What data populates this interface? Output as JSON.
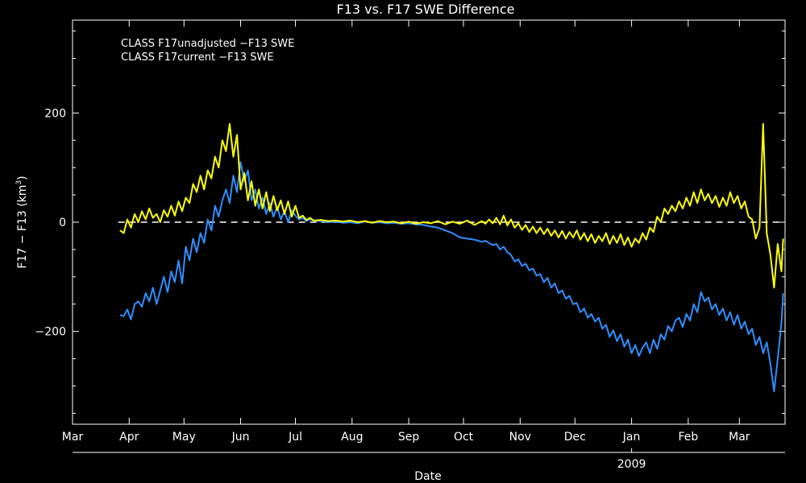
{
  "chart_data": {
    "type": "line",
    "title": "F13 vs. F17 SWE Difference",
    "xlabel": "Date",
    "ylabel_main": "F17 − F13 (km",
    "ylabel_sup": "3",
    "ylabel_close": ")",
    "year_label": "2009",
    "months": [
      "Mar",
      "Apr",
      "May",
      "Jun",
      "Jul",
      "Aug",
      "Sep",
      "Oct",
      "Nov",
      "Dec",
      "Jan",
      "Feb",
      "Mar"
    ],
    "month_days": [
      0,
      31,
      61,
      92,
      122,
      153,
      184,
      214,
      245,
      275,
      306,
      337,
      365
    ],
    "xlim": [
      0,
      390
    ],
    "ylim": [
      -370,
      370
    ],
    "yticks": [
      -200,
      0,
      200
    ],
    "ytick_labels": [
      "−200",
      "0",
      "200"
    ],
    "zero_line": 0,
    "grid": false,
    "legend_position": "top-left",
    "series": [
      {
        "name": "CLASS F17unadjusted −F13 SWE",
        "color": "#2f8fff",
        "points": [
          [
            26,
            -170
          ],
          [
            28,
            -172
          ],
          [
            30,
            -160
          ],
          [
            32,
            -178
          ],
          [
            34,
            -150
          ],
          [
            36,
            -145
          ],
          [
            38,
            -155
          ],
          [
            40,
            -130
          ],
          [
            42,
            -145
          ],
          [
            44,
            -120
          ],
          [
            46,
            -150
          ],
          [
            48,
            -125
          ],
          [
            50,
            -100
          ],
          [
            52,
            -128
          ],
          [
            54,
            -90
          ],
          [
            56,
            -110
          ],
          [
            58,
            -70
          ],
          [
            60,
            -112
          ],
          [
            62,
            -45
          ],
          [
            64,
            -70
          ],
          [
            66,
            -30
          ],
          [
            68,
            -55
          ],
          [
            70,
            -20
          ],
          [
            72,
            -38
          ],
          [
            74,
            5
          ],
          [
            76,
            -15
          ],
          [
            78,
            30
          ],
          [
            80,
            10
          ],
          [
            82,
            40
          ],
          [
            84,
            60
          ],
          [
            86,
            35
          ],
          [
            88,
            85
          ],
          [
            90,
            55
          ],
          [
            92,
            110
          ],
          [
            94,
            75
          ],
          [
            96,
            95
          ],
          [
            98,
            40
          ],
          [
            100,
            60
          ],
          [
            102,
            25
          ],
          [
            104,
            45
          ],
          [
            106,
            15
          ],
          [
            108,
            35
          ],
          [
            110,
            10
          ],
          [
            112,
            28
          ],
          [
            114,
            5
          ],
          [
            116,
            20
          ],
          [
            118,
            0
          ],
          [
            120,
            22
          ],
          [
            122,
            12
          ],
          [
            124,
            5
          ],
          [
            126,
            8
          ],
          [
            128,
            2
          ],
          [
            130,
            5
          ],
          [
            132,
            3
          ],
          [
            136,
            2
          ],
          [
            140,
            0
          ],
          [
            144,
            1
          ],
          [
            148,
            -1
          ],
          [
            152,
            0
          ],
          [
            156,
            -2
          ],
          [
            160,
            1
          ],
          [
            164,
            -1
          ],
          [
            168,
            0
          ],
          [
            172,
            -2
          ],
          [
            176,
            -1
          ],
          [
            180,
            -3
          ],
          [
            184,
            -2
          ],
          [
            188,
            -4
          ],
          [
            192,
            -5
          ],
          [
            196,
            -8
          ],
          [
            200,
            -10
          ],
          [
            204,
            -15
          ],
          [
            208,
            -20
          ],
          [
            212,
            -28
          ],
          [
            216,
            -30
          ],
          [
            220,
            -32
          ],
          [
            224,
            -36
          ],
          [
            226,
            -34
          ],
          [
            228,
            -38
          ],
          [
            230,
            -42
          ],
          [
            232,
            -40
          ],
          [
            234,
            -50
          ],
          [
            236,
            -45
          ],
          [
            238,
            -55
          ],
          [
            240,
            -60
          ],
          [
            242,
            -72
          ],
          [
            244,
            -68
          ],
          [
            246,
            -80
          ],
          [
            248,
            -76
          ],
          [
            250,
            -88
          ],
          [
            252,
            -85
          ],
          [
            254,
            -98
          ],
          [
            256,
            -95
          ],
          [
            258,
            -110
          ],
          [
            260,
            -102
          ],
          [
            262,
            -120
          ],
          [
            264,
            -112
          ],
          [
            266,
            -130
          ],
          [
            268,
            -125
          ],
          [
            270,
            -140
          ],
          [
            272,
            -135
          ],
          [
            274,
            -150
          ],
          [
            276,
            -148
          ],
          [
            278,
            -165
          ],
          [
            280,
            -158
          ],
          [
            282,
            -175
          ],
          [
            284,
            -168
          ],
          [
            286,
            -182
          ],
          [
            288,
            -175
          ],
          [
            290,
            -195
          ],
          [
            292,
            -188
          ],
          [
            294,
            -210
          ],
          [
            296,
            -198
          ],
          [
            298,
            -218
          ],
          [
            300,
            -205
          ],
          [
            302,
            -228
          ],
          [
            304,
            -215
          ],
          [
            306,
            -240
          ],
          [
            308,
            -225
          ],
          [
            310,
            -245
          ],
          [
            312,
            -230
          ],
          [
            314,
            -220
          ],
          [
            316,
            -240
          ],
          [
            318,
            -215
          ],
          [
            320,
            -232
          ],
          [
            322,
            -205
          ],
          [
            324,
            -215
          ],
          [
            326,
            -190
          ],
          [
            328,
            -200
          ],
          [
            330,
            -180
          ],
          [
            332,
            -175
          ],
          [
            334,
            -192
          ],
          [
            336,
            -168
          ],
          [
            338,
            -180
          ],
          [
            340,
            -150
          ],
          [
            342,
            -165
          ],
          [
            344,
            -128
          ],
          [
            346,
            -145
          ],
          [
            348,
            -138
          ],
          [
            350,
            -160
          ],
          [
            352,
            -150
          ],
          [
            354,
            -170
          ],
          [
            356,
            -158
          ],
          [
            358,
            -180
          ],
          [
            360,
            -165
          ],
          [
            362,
            -188
          ],
          [
            364,
            -170
          ],
          [
            366,
            -195
          ],
          [
            368,
            -182
          ],
          [
            370,
            -205
          ],
          [
            372,
            -195
          ],
          [
            374,
            -225
          ],
          [
            376,
            -210
          ],
          [
            378,
            -240
          ],
          [
            380,
            -220
          ],
          [
            382,
            -260
          ],
          [
            384,
            -310
          ],
          [
            386,
            -250
          ],
          [
            388,
            -185
          ],
          [
            389,
            -130
          ]
        ]
      },
      {
        "name": "CLASS F17current −F13 SWE",
        "color": "#ffff00",
        "points": [
          [
            26,
            -15
          ],
          [
            28,
            -20
          ],
          [
            30,
            5
          ],
          [
            32,
            -10
          ],
          [
            34,
            15
          ],
          [
            36,
            0
          ],
          [
            38,
            20
          ],
          [
            40,
            5
          ],
          [
            42,
            25
          ],
          [
            44,
            8
          ],
          [
            46,
            15
          ],
          [
            48,
            0
          ],
          [
            50,
            22
          ],
          [
            52,
            10
          ],
          [
            54,
            30
          ],
          [
            56,
            12
          ],
          [
            58,
            38
          ],
          [
            60,
            20
          ],
          [
            62,
            45
          ],
          [
            64,
            35
          ],
          [
            66,
            70
          ],
          [
            68,
            55
          ],
          [
            70,
            85
          ],
          [
            72,
            60
          ],
          [
            74,
            95
          ],
          [
            76,
            80
          ],
          [
            78,
            120
          ],
          [
            80,
            100
          ],
          [
            82,
            150
          ],
          [
            84,
            130
          ],
          [
            86,
            180
          ],
          [
            88,
            120
          ],
          [
            90,
            160
          ],
          [
            92,
            60
          ],
          [
            94,
            90
          ],
          [
            96,
            40
          ],
          [
            98,
            75
          ],
          [
            100,
            30
          ],
          [
            102,
            60
          ],
          [
            104,
            25
          ],
          [
            106,
            55
          ],
          [
            108,
            20
          ],
          [
            110,
            48
          ],
          [
            112,
            22
          ],
          [
            114,
            40
          ],
          [
            116,
            15
          ],
          [
            118,
            38
          ],
          [
            120,
            10
          ],
          [
            122,
            30
          ],
          [
            124,
            8
          ],
          [
            126,
            12
          ],
          [
            128,
            4
          ],
          [
            130,
            8
          ],
          [
            132,
            3
          ],
          [
            136,
            4
          ],
          [
            140,
            2
          ],
          [
            144,
            3
          ],
          [
            148,
            1
          ],
          [
            152,
            3
          ],
          [
            156,
            0
          ],
          [
            160,
            2
          ],
          [
            164,
            -1
          ],
          [
            168,
            2
          ],
          [
            172,
            0
          ],
          [
            176,
            1
          ],
          [
            180,
            -2
          ],
          [
            184,
            1
          ],
          [
            188,
            -3
          ],
          [
            192,
            0
          ],
          [
            196,
            -2
          ],
          [
            200,
            2
          ],
          [
            204,
            -4
          ],
          [
            208,
            1
          ],
          [
            212,
            -3
          ],
          [
            216,
            3
          ],
          [
            220,
            -5
          ],
          [
            224,
            2
          ],
          [
            226,
            -3
          ],
          [
            228,
            5
          ],
          [
            230,
            -2
          ],
          [
            232,
            8
          ],
          [
            234,
            -4
          ],
          [
            236,
            12
          ],
          [
            238,
            -6
          ],
          [
            240,
            5
          ],
          [
            242,
            -10
          ],
          [
            244,
            -2
          ],
          [
            246,
            -14
          ],
          [
            248,
            -5
          ],
          [
            250,
            -18
          ],
          [
            252,
            -8
          ],
          [
            254,
            -20
          ],
          [
            256,
            -10
          ],
          [
            258,
            -22
          ],
          [
            260,
            -12
          ],
          [
            262,
            -25
          ],
          [
            264,
            -15
          ],
          [
            266,
            -28
          ],
          [
            268,
            -16
          ],
          [
            270,
            -30
          ],
          [
            272,
            -18
          ],
          [
            274,
            -28
          ],
          [
            276,
            -15
          ],
          [
            278,
            -32
          ],
          [
            280,
            -20
          ],
          [
            282,
            -35
          ],
          [
            284,
            -22
          ],
          [
            286,
            -38
          ],
          [
            288,
            -25
          ],
          [
            290,
            -35
          ],
          [
            292,
            -20
          ],
          [
            294,
            -40
          ],
          [
            296,
            -25
          ],
          [
            298,
            -38
          ],
          [
            300,
            -22
          ],
          [
            302,
            -42
          ],
          [
            304,
            -28
          ],
          [
            306,
            -45
          ],
          [
            308,
            -30
          ],
          [
            310,
            -38
          ],
          [
            312,
            -20
          ],
          [
            314,
            -32
          ],
          [
            316,
            -10
          ],
          [
            318,
            -18
          ],
          [
            320,
            10
          ],
          [
            322,
            0
          ],
          [
            324,
            25
          ],
          [
            326,
            15
          ],
          [
            328,
            30
          ],
          [
            330,
            20
          ],
          [
            332,
            38
          ],
          [
            334,
            25
          ],
          [
            336,
            45
          ],
          [
            338,
            30
          ],
          [
            340,
            55
          ],
          [
            342,
            35
          ],
          [
            344,
            60
          ],
          [
            346,
            40
          ],
          [
            348,
            52
          ],
          [
            350,
            35
          ],
          [
            352,
            48
          ],
          [
            354,
            28
          ],
          [
            356,
            45
          ],
          [
            358,
            30
          ],
          [
            360,
            55
          ],
          [
            362,
            35
          ],
          [
            364,
            48
          ],
          [
            366,
            25
          ],
          [
            368,
            38
          ],
          [
            370,
            10
          ],
          [
            372,
            5
          ],
          [
            374,
            -30
          ],
          [
            376,
            -10
          ],
          [
            378,
            180
          ],
          [
            380,
            -20
          ],
          [
            382,
            -60
          ],
          [
            384,
            -120
          ],
          [
            386,
            -40
          ],
          [
            388,
            -90
          ],
          [
            389,
            -30
          ]
        ]
      }
    ]
  }
}
